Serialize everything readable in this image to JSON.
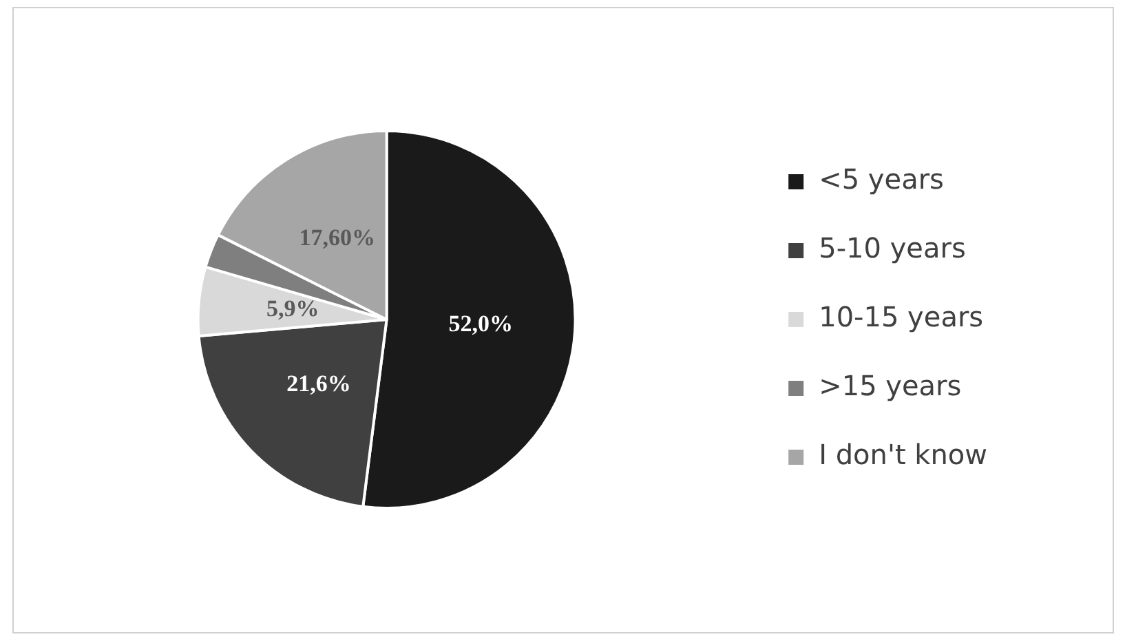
{
  "chart_data": {
    "type": "pie",
    "categories": [
      "<5 years",
      "5-10 years",
      "10-15 years",
      ">15 years",
      "I don't know"
    ],
    "values": [
      52.0,
      21.6,
      5.9,
      2.9,
      17.6
    ],
    "colors": [
      "#1a1a1a",
      "#404040",
      "#d9d9d9",
      "#7f7f7f",
      "#a6a6a6"
    ],
    "value_labels": [
      "52,0%",
      "21,6%",
      "5,9%",
      null,
      "17,60%"
    ],
    "legend": "right"
  }
}
